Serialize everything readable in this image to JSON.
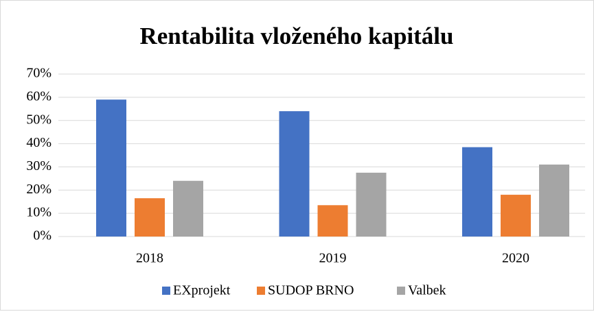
{
  "chart_data": {
    "type": "bar",
    "title": "Rentabilita vloženého kapitálu",
    "categories": [
      "2018",
      "2019",
      "2020"
    ],
    "series": [
      {
        "name": "EXprojekt",
        "color": "#4472c4",
        "values": [
          59,
          54,
          38.5
        ]
      },
      {
        "name": "SUDOP BRNO",
        "color": "#ed7d31",
        "values": [
          16.5,
          13.5,
          18
        ]
      },
      {
        "name": "Valbek",
        "color": "#a5a5a5",
        "values": [
          24,
          27.5,
          31
        ]
      }
    ],
    "ylim": [
      0,
      70
    ],
    "yticks": [
      {
        "value": 0,
        "label": "0%"
      },
      {
        "value": 10,
        "label": "10%"
      },
      {
        "value": 20,
        "label": "20%"
      },
      {
        "value": 30,
        "label": "30%"
      },
      {
        "value": 40,
        "label": "40%"
      },
      {
        "value": 50,
        "label": "50%"
      },
      {
        "value": 60,
        "label": "60%"
      },
      {
        "value": 70,
        "label": "70%"
      }
    ],
    "grid": true,
    "legend": "bottom"
  }
}
